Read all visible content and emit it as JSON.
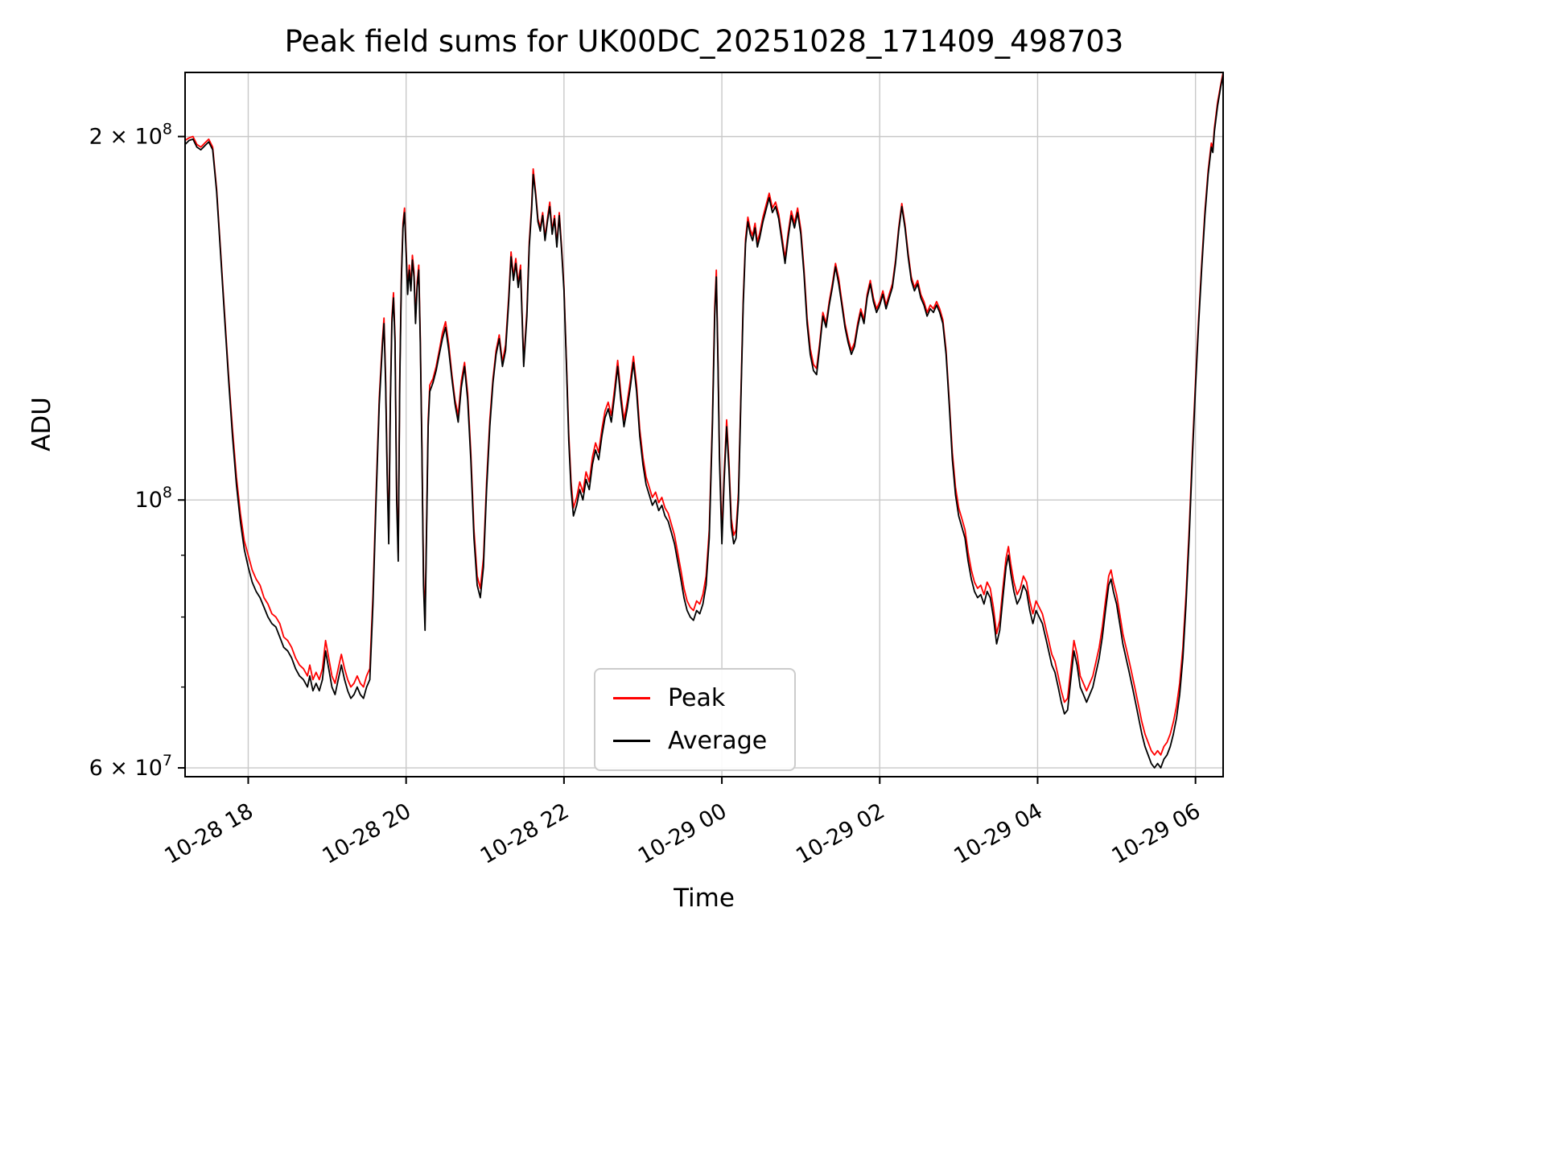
{
  "figure": {
    "title": "Peak field sums for UK00DC_20251028_171409_498703",
    "xlabel": "Time",
    "ylabel": "ADU"
  },
  "chart_data": {
    "type": "line",
    "title": "Peak field sums for UK00DC_20251028_171409_498703",
    "xlabel": "Time",
    "ylabel": "ADU",
    "y_scale": "log",
    "grid": true,
    "grid_color": "#c8c8c8",
    "legend_position": "lower center",
    "x_axis_note": "hours since 2025-10-28 17:00",
    "values_unit": "1e7 ADU",
    "unit_multiplier": 10000000,
    "x_range": [
      0.2,
      13.35
    ],
    "y_range": [
      5.9,
      22.6
    ],
    "x_ticks": [
      {
        "t": 1,
        "label": "10-28 18"
      },
      {
        "t": 3,
        "label": "10-28 20"
      },
      {
        "t": 5,
        "label": "10-28 22"
      },
      {
        "t": 7,
        "label": "10-29 00"
      },
      {
        "t": 9,
        "label": "10-29 02"
      },
      {
        "t": 11,
        "label": "10-29 04"
      },
      {
        "t": 13,
        "label": "10-29 06"
      }
    ],
    "y_ticks": [
      {
        "v": 6,
        "label": "6 × 10^7"
      },
      {
        "v": 10,
        "label": "10^8"
      },
      {
        "v": 20,
        "label": "2 × 10^8"
      }
    ],
    "y_minor_ticks": [
      7,
      8,
      9
    ],
    "t": [
      0.2,
      0.25,
      0.3,
      0.35,
      0.4,
      0.45,
      0.5,
      0.55,
      0.6,
      0.65,
      0.7,
      0.75,
      0.8,
      0.85,
      0.9,
      0.95,
      1.0,
      1.05,
      1.1,
      1.15,
      1.2,
      1.25,
      1.3,
      1.35,
      1.4,
      1.45,
      1.5,
      1.55,
      1.6,
      1.65,
      1.7,
      1.75,
      1.78,
      1.82,
      1.86,
      1.9,
      1.94,
      1.98,
      2.02,
      2.06,
      2.1,
      2.14,
      2.18,
      2.22,
      2.26,
      2.3,
      2.34,
      2.38,
      2.42,
      2.46,
      2.5,
      2.54,
      2.58,
      2.62,
      2.66,
      2.7,
      2.72,
      2.74,
      2.76,
      2.78,
      2.8,
      2.82,
      2.84,
      2.86,
      2.88,
      2.9,
      2.92,
      2.94,
      2.96,
      2.98,
      3.0,
      3.02,
      3.04,
      3.06,
      3.08,
      3.1,
      3.12,
      3.14,
      3.16,
      3.18,
      3.2,
      3.22,
      3.24,
      3.26,
      3.28,
      3.3,
      3.34,
      3.38,
      3.42,
      3.46,
      3.5,
      3.54,
      3.58,
      3.62,
      3.66,
      3.7,
      3.74,
      3.78,
      3.82,
      3.86,
      3.9,
      3.94,
      3.98,
      4.02,
      4.06,
      4.1,
      4.14,
      4.18,
      4.22,
      4.26,
      4.3,
      4.33,
      4.36,
      4.39,
      4.42,
      4.45,
      4.49,
      4.53,
      4.56,
      4.59,
      4.61,
      4.64,
      4.67,
      4.7,
      4.73,
      4.76,
      4.79,
      4.82,
      4.85,
      4.88,
      4.91,
      4.94,
      4.97,
      5.0,
      5.03,
      5.06,
      5.09,
      5.12,
      5.16,
      5.2,
      5.24,
      5.28,
      5.32,
      5.36,
      5.4,
      5.44,
      5.48,
      5.52,
      5.56,
      5.6,
      5.64,
      5.68,
      5.72,
      5.76,
      5.8,
      5.84,
      5.88,
      5.92,
      5.96,
      6.0,
      6.04,
      6.08,
      6.12,
      6.16,
      6.2,
      6.24,
      6.28,
      6.32,
      6.36,
      6.4,
      6.44,
      6.48,
      6.52,
      6.56,
      6.6,
      6.64,
      6.68,
      6.72,
      6.76,
      6.8,
      6.84,
      6.88,
      6.91,
      6.93,
      6.95,
      6.97,
      7.0,
      7.03,
      7.06,
      7.09,
      7.12,
      7.15,
      7.18,
      7.21,
      7.24,
      7.27,
      7.3,
      7.33,
      7.36,
      7.39,
      7.42,
      7.45,
      7.48,
      7.52,
      7.56,
      7.6,
      7.64,
      7.68,
      7.72,
      7.76,
      7.8,
      7.84,
      7.88,
      7.92,
      7.96,
      8.0,
      8.04,
      8.08,
      8.12,
      8.16,
      8.2,
      8.24,
      8.28,
      8.32,
      8.36,
      8.4,
      8.44,
      8.48,
      8.52,
      8.56,
      8.6,
      8.64,
      8.68,
      8.72,
      8.76,
      8.8,
      8.84,
      8.88,
      8.92,
      8.96,
      9.0,
      9.04,
      9.08,
      9.12,
      9.16,
      9.2,
      9.24,
      9.28,
      9.32,
      9.36,
      9.4,
      9.44,
      9.48,
      9.52,
      9.56,
      9.6,
      9.64,
      9.68,
      9.72,
      9.76,
      9.8,
      9.84,
      9.88,
      9.92,
      9.96,
      10.0,
      10.04,
      10.08,
      10.12,
      10.16,
      10.2,
      10.24,
      10.28,
      10.32,
      10.36,
      10.4,
      10.44,
      10.48,
      10.52,
      10.56,
      10.6,
      10.63,
      10.66,
      10.7,
      10.74,
      10.78,
      10.82,
      10.86,
      10.9,
      10.94,
      10.98,
      11.02,
      11.06,
      11.1,
      11.14,
      11.18,
      11.22,
      11.26,
      11.3,
      11.34,
      11.38,
      11.42,
      11.46,
      11.5,
      11.54,
      11.58,
      11.62,
      11.66,
      11.7,
      11.74,
      11.78,
      11.82,
      11.86,
      11.9,
      11.93,
      11.96,
      12.0,
      12.04,
      12.08,
      12.12,
      12.16,
      12.2,
      12.24,
      12.28,
      12.32,
      12.36,
      12.4,
      12.44,
      12.48,
      12.52,
      12.56,
      12.6,
      12.64,
      12.68,
      12.72,
      12.76,
      12.8,
      12.84,
      12.88,
      12.92,
      12.96,
      13.0,
      13.04,
      13.08,
      13.12,
      13.16,
      13.2,
      13.22,
      13.24,
      13.28,
      13.32,
      13.35
    ],
    "series": [
      {
        "name": "Peak",
        "color": "#ff0000",
        "values": [
          19.85,
          19.95,
          20.0,
          19.7,
          19.6,
          19.75,
          19.9,
          19.6,
          18.1,
          16.1,
          14.3,
          12.7,
          11.45,
          10.45,
          9.75,
          9.25,
          9.0,
          8.75,
          8.6,
          8.5,
          8.3,
          8.2,
          8.05,
          8.0,
          7.9,
          7.7,
          7.65,
          7.55,
          7.4,
          7.3,
          7.25,
          7.15,
          7.3,
          7.1,
          7.2,
          7.1,
          7.25,
          7.65,
          7.4,
          7.15,
          7.05,
          7.25,
          7.45,
          7.25,
          7.1,
          7.0,
          7.05,
          7.15,
          7.05,
          7.0,
          7.15,
          7.25,
          8.35,
          10.15,
          12.15,
          13.55,
          14.15,
          12.65,
          10.65,
          9.35,
          12.15,
          14.15,
          14.85,
          13.65,
          10.15,
          9.05,
          12.65,
          15.35,
          16.95,
          17.45,
          16.15,
          14.95,
          15.65,
          15.05,
          15.95,
          15.45,
          14.15,
          15.15,
          15.65,
          13.65,
          11.15,
          8.65,
          7.95,
          9.65,
          11.65,
          12.45,
          12.6,
          12.9,
          13.3,
          13.75,
          14.05,
          13.45,
          12.7,
          12.1,
          11.75,
          12.55,
          13.0,
          12.25,
          10.95,
          9.45,
          8.65,
          8.45,
          8.95,
          10.35,
          11.65,
          12.6,
          13.3,
          13.7,
          13.0,
          13.45,
          14.75,
          16.05,
          15.3,
          15.85,
          15.1,
          15.65,
          13.0,
          14.35,
          16.35,
          17.55,
          18.8,
          18.0,
          17.1,
          16.8,
          17.3,
          16.5,
          17.1,
          17.65,
          16.7,
          17.2,
          16.3,
          17.3,
          16.2,
          15.0,
          13.1,
          11.35,
          10.35,
          9.85,
          10.05,
          10.35,
          10.15,
          10.55,
          10.35,
          10.85,
          11.15,
          10.95,
          11.45,
          11.85,
          12.05,
          11.75,
          12.35,
          13.05,
          12.25,
          11.65,
          12.05,
          12.55,
          13.15,
          12.45,
          11.45,
          10.85,
          10.45,
          10.25,
          10.05,
          10.15,
          9.95,
          10.05,
          9.85,
          9.75,
          9.55,
          9.35,
          9.05,
          8.75,
          8.45,
          8.25,
          8.15,
          8.1,
          8.25,
          8.2,
          8.35,
          8.65,
          9.45,
          11.65,
          14.45,
          15.5,
          13.15,
          10.95,
          9.35,
          10.55,
          11.65,
          10.75,
          9.65,
          9.35,
          9.45,
          10.15,
          12.15,
          14.65,
          16.45,
          17.15,
          16.75,
          16.55,
          16.95,
          16.35,
          16.65,
          17.15,
          17.55,
          17.95,
          17.45,
          17.65,
          17.25,
          16.55,
          15.85,
          16.65,
          17.35,
          16.95,
          17.45,
          16.75,
          15.55,
          14.15,
          13.35,
          12.95,
          12.85,
          13.5,
          14.3,
          14.0,
          14.6,
          15.1,
          15.7,
          15.25,
          14.6,
          14.0,
          13.6,
          13.3,
          13.5,
          14.0,
          14.4,
          14.1,
          14.8,
          15.2,
          14.7,
          14.4,
          14.6,
          14.9,
          14.5,
          14.8,
          15.1,
          15.8,
          16.8,
          17.6,
          16.9,
          16.0,
          15.3,
          15.0,
          15.2,
          14.8,
          14.6,
          14.3,
          14.5,
          14.4,
          14.6,
          14.4,
          14.1,
          13.3,
          12.1,
          10.95,
          10.25,
          9.85,
          9.65,
          9.45,
          9.05,
          8.75,
          8.55,
          8.45,
          8.5,
          8.35,
          8.55,
          8.45,
          8.15,
          7.75,
          7.95,
          8.45,
          8.95,
          9.15,
          8.85,
          8.55,
          8.35,
          8.45,
          8.65,
          8.55,
          8.25,
          8.05,
          8.25,
          8.15,
          8.05,
          7.85,
          7.65,
          7.45,
          7.35,
          7.15,
          6.95,
          6.8,
          6.85,
          7.25,
          7.65,
          7.45,
          7.15,
          7.05,
          6.95,
          7.05,
          7.15,
          7.35,
          7.55,
          7.85,
          8.25,
          8.65,
          8.75,
          8.55,
          8.35,
          8.05,
          7.75,
          7.55,
          7.35,
          7.15,
          6.95,
          6.75,
          6.55,
          6.4,
          6.3,
          6.2,
          6.15,
          6.2,
          6.15,
          6.25,
          6.3,
          6.4,
          6.55,
          6.75,
          7.05,
          7.55,
          8.35,
          9.45,
          10.95,
          12.55,
          14.15,
          15.75,
          17.35,
          18.75,
          19.75,
          19.55,
          20.35,
          21.35,
          22.1,
          22.6
        ]
      },
      {
        "name": "Average",
        "color": "#000000",
        "values": [
          19.7,
          19.85,
          19.9,
          19.6,
          19.5,
          19.65,
          19.8,
          19.5,
          18.0,
          16.0,
          14.2,
          12.6,
          11.3,
          10.3,
          9.6,
          9.1,
          8.8,
          8.55,
          8.4,
          8.3,
          8.15,
          8.0,
          7.9,
          7.85,
          7.7,
          7.55,
          7.5,
          7.4,
          7.25,
          7.15,
          7.1,
          7.0,
          7.15,
          6.95,
          7.05,
          6.95,
          7.1,
          7.5,
          7.25,
          7.0,
          6.9,
          7.1,
          7.3,
          7.1,
          6.95,
          6.85,
          6.9,
          7.0,
          6.9,
          6.85,
          7.0,
          7.1,
          8.2,
          10.0,
          12.0,
          13.4,
          14.0,
          12.5,
          10.5,
          9.2,
          12.0,
          14.0,
          14.7,
          13.5,
          10.0,
          8.9,
          12.5,
          15.2,
          16.8,
          17.3,
          16.0,
          14.8,
          15.5,
          14.9,
          15.8,
          15.3,
          14.0,
          15.0,
          15.5,
          13.5,
          11.0,
          8.5,
          7.8,
          9.5,
          11.5,
          12.3,
          12.5,
          12.8,
          13.2,
          13.6,
          13.9,
          13.3,
          12.6,
          12.0,
          11.6,
          12.4,
          12.9,
          12.1,
          10.8,
          9.3,
          8.5,
          8.3,
          8.8,
          10.2,
          11.5,
          12.5,
          13.2,
          13.6,
          12.9,
          13.3,
          14.6,
          15.9,
          15.2,
          15.7,
          15.0,
          15.5,
          12.9,
          14.2,
          16.2,
          17.4,
          18.6,
          17.9,
          17.0,
          16.7,
          17.2,
          16.4,
          17.0,
          17.5,
          16.6,
          17.1,
          16.2,
          17.2,
          16.1,
          14.9,
          13.0,
          11.2,
          10.2,
          9.7,
          9.9,
          10.2,
          10.0,
          10.4,
          10.2,
          10.7,
          11.0,
          10.8,
          11.3,
          11.7,
          11.9,
          11.6,
          12.2,
          12.9,
          12.1,
          11.5,
          11.9,
          12.4,
          13.0,
          12.3,
          11.3,
          10.7,
          10.3,
          10.1,
          9.9,
          10.0,
          9.8,
          9.9,
          9.7,
          9.6,
          9.4,
          9.2,
          8.9,
          8.6,
          8.3,
          8.1,
          8.0,
          7.95,
          8.1,
          8.05,
          8.2,
          8.5,
          9.3,
          11.5,
          14.2,
          15.3,
          13.0,
          10.8,
          9.2,
          10.4,
          11.5,
          10.6,
          9.5,
          9.2,
          9.3,
          10.0,
          12.0,
          14.5,
          16.3,
          17.0,
          16.6,
          16.4,
          16.8,
          16.2,
          16.5,
          17.0,
          17.4,
          17.8,
          17.3,
          17.5,
          17.1,
          16.4,
          15.7,
          16.5,
          17.2,
          16.8,
          17.3,
          16.6,
          15.4,
          14.0,
          13.2,
          12.8,
          12.7,
          13.4,
          14.2,
          13.9,
          14.5,
          15.0,
          15.6,
          15.1,
          14.5,
          13.9,
          13.5,
          13.2,
          13.4,
          13.9,
          14.3,
          14.0,
          14.7,
          15.1,
          14.6,
          14.3,
          14.5,
          14.8,
          14.4,
          14.7,
          15.0,
          15.7,
          16.7,
          17.5,
          16.8,
          15.9,
          15.2,
          14.9,
          15.1,
          14.7,
          14.5,
          14.2,
          14.4,
          14.3,
          14.5,
          14.3,
          14.0,
          13.2,
          12.0,
          10.8,
          10.1,
          9.7,
          9.5,
          9.3,
          8.9,
          8.6,
          8.4,
          8.3,
          8.35,
          8.2,
          8.4,
          8.3,
          8.0,
          7.6,
          7.8,
          8.3,
          8.8,
          9.0,
          8.7,
          8.4,
          8.2,
          8.3,
          8.5,
          8.4,
          8.1,
          7.9,
          8.1,
          8.0,
          7.9,
          7.7,
          7.5,
          7.3,
          7.2,
          7.0,
          6.8,
          6.65,
          6.7,
          7.1,
          7.5,
          7.3,
          7.0,
          6.9,
          6.8,
          6.9,
          7.0,
          7.2,
          7.4,
          7.7,
          8.1,
          8.5,
          8.6,
          8.4,
          8.2,
          7.9,
          7.6,
          7.4,
          7.2,
          7.0,
          6.8,
          6.6,
          6.4,
          6.25,
          6.15,
          6.05,
          6.0,
          6.05,
          6.0,
          6.1,
          6.15,
          6.25,
          6.4,
          6.6,
          6.9,
          7.4,
          8.2,
          9.3,
          10.8,
          12.4,
          14.0,
          15.6,
          17.2,
          18.6,
          19.6,
          19.4,
          20.2,
          21.2,
          22.0,
          22.5
        ]
      }
    ]
  }
}
